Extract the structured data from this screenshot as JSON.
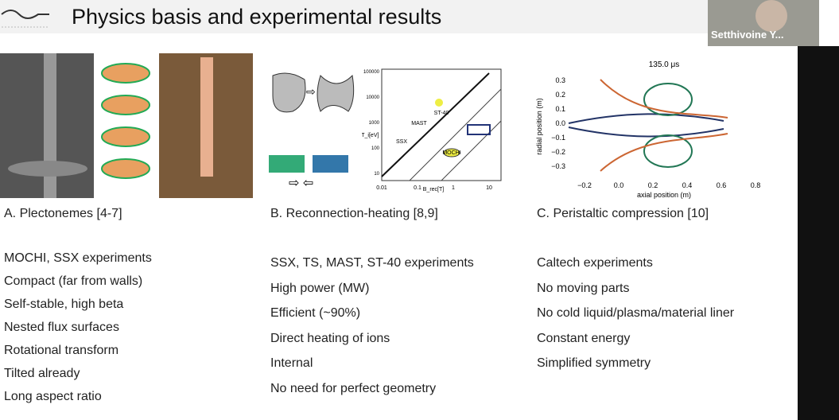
{
  "header": {
    "title": "Physics basis and experimental results"
  },
  "video": {
    "name": "Setthivoine Y..."
  },
  "columns": [
    {
      "caption": "A. Plectonemes [4-7]",
      "items": [
        "MOCHI, SSX experiments",
        "Compact (far from walls)",
        "Self-stable, high beta",
        "Nested flux surfaces",
        "Rotational transform",
        "Tilted already",
        "Long aspect ratio"
      ]
    },
    {
      "caption": "B. Reconnection-heating [8,9]",
      "items": [
        "SSX, TS, MAST, ST-40 experiments",
        "High power (MW)",
        "Efficient (~90%)",
        "Direct heating of ions",
        "Internal",
        "No need for perfect geometry"
      ]
    },
    {
      "caption": "C. Peristaltic compression [10]",
      "items": [
        "Caltech experiments",
        "No moving parts",
        "No cold liquid/plasma/material liner",
        "Constant energy",
        "Simplified symmetry"
      ]
    }
  ],
  "figure_b": {
    "labels": [
      "ST-40",
      "SSX",
      "MAST",
      "MOCHI",
      "B_rec[T]",
      "ΔT_i[eV]"
    ],
    "xticks": [
      "0.01",
      "0.1",
      "1",
      "10"
    ],
    "yticks": [
      "100000",
      "10000",
      "1000",
      "100",
      "10"
    ]
  },
  "figure_c": {
    "title": "135.0 μs",
    "xlabel": "axial position (m)",
    "ylabel": "radial position (m)",
    "xticks": [
      "−0.2",
      "0.0",
      "0.2",
      "0.4",
      "0.6",
      "0.8"
    ],
    "yticks": [
      "0.3",
      "0.2",
      "0.1",
      "0.0",
      "−0.1",
      "−0.2",
      "−0.3"
    ]
  }
}
